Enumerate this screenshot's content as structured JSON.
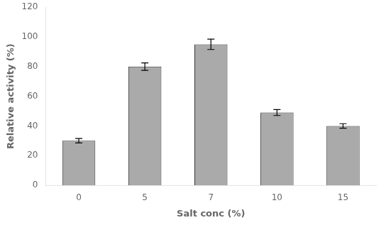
{
  "chart_data": {
    "type": "bar",
    "categories": [
      "0",
      "5",
      "7",
      "10",
      "15"
    ],
    "values": [
      30,
      80,
      95,
      49,
      40
    ],
    "errors": [
      1.5,
      2.5,
      3.5,
      2.0,
      1.5
    ],
    "color": "#aaaaaa",
    "xlabel": "Salt conc (%)",
    "ylabel": "Relative activity (%)",
    "ylim": [
      0,
      120
    ],
    "yticks": [
      0,
      20,
      40,
      60,
      80,
      100,
      120
    ],
    "grid": false
  }
}
